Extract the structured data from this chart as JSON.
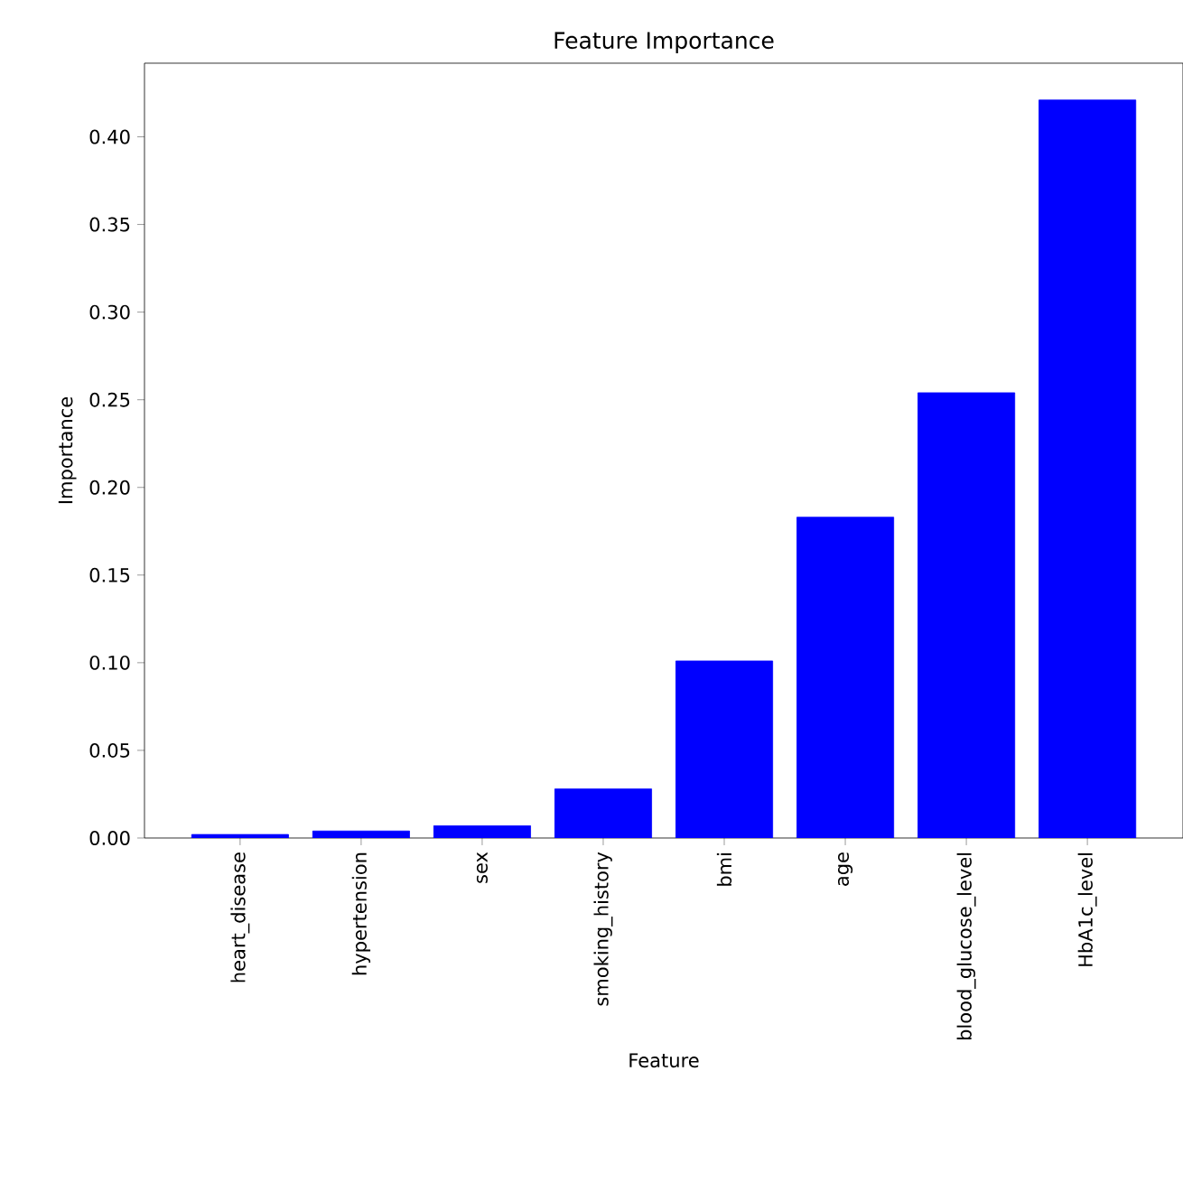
{
  "chart_data": {
    "type": "bar",
    "title": "Feature Importance",
    "xlabel": "Feature",
    "ylabel": "Importance",
    "categories": [
      "heart_disease",
      "hypertension",
      "sex",
      "smoking_history",
      "bmi",
      "age",
      "blood_glucose_level",
      "HbA1c_level"
    ],
    "values": [
      0.002,
      0.004,
      0.007,
      0.028,
      0.101,
      0.183,
      0.254,
      0.421
    ],
    "color": "#0000ff",
    "ylim": [
      0,
      0.442
    ],
    "yticks": [
      {
        "value": 0,
        "label": "0.00"
      },
      {
        "value": 0.05,
        "label": "0.05"
      },
      {
        "value": 0.1,
        "label": "0.10"
      },
      {
        "value": 0.15,
        "label": "0.15"
      },
      {
        "value": 0.2,
        "label": "0.20"
      },
      {
        "value": 0.25,
        "label": "0.25"
      },
      {
        "value": 0.3,
        "label": "0.30"
      },
      {
        "value": 0.35,
        "label": "0.35"
      },
      {
        "value": 0.4,
        "label": "0.40"
      }
    ]
  }
}
